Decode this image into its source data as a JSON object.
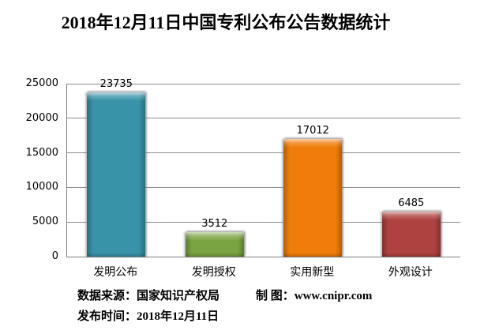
{
  "title": "2018年12月11日中国专利公布公告数据统计",
  "chart_data": {
    "type": "bar",
    "title": "2018年12月11日中国专利公布公告数据统计",
    "categories": [
      "发明公布",
      "发明授权",
      "实用新型",
      "外观设计"
    ],
    "values": [
      23735,
      3512,
      17012,
      6485
    ],
    "data_labels": [
      "23735",
      "3512",
      "17012",
      "6485"
    ],
    "bar_colors": [
      "#3892a8",
      "#7aa441",
      "#f07d0a",
      "#ae4240"
    ],
    "xlabel": "",
    "ylabel": "",
    "ylim": [
      0,
      25000
    ],
    "yticks": [
      0,
      5000,
      10000,
      15000,
      20000,
      25000
    ],
    "grid": true,
    "legend": false,
    "gridline_color": "#8c8c8c",
    "axis_color": "#808080",
    "background_color": "#ffffff"
  },
  "footer": {
    "source_label": "数据来源：国家知识产权局",
    "maker_label": "制 图：www.cnipr.com",
    "publish_label": "发布时间：2018年12月11日"
  }
}
